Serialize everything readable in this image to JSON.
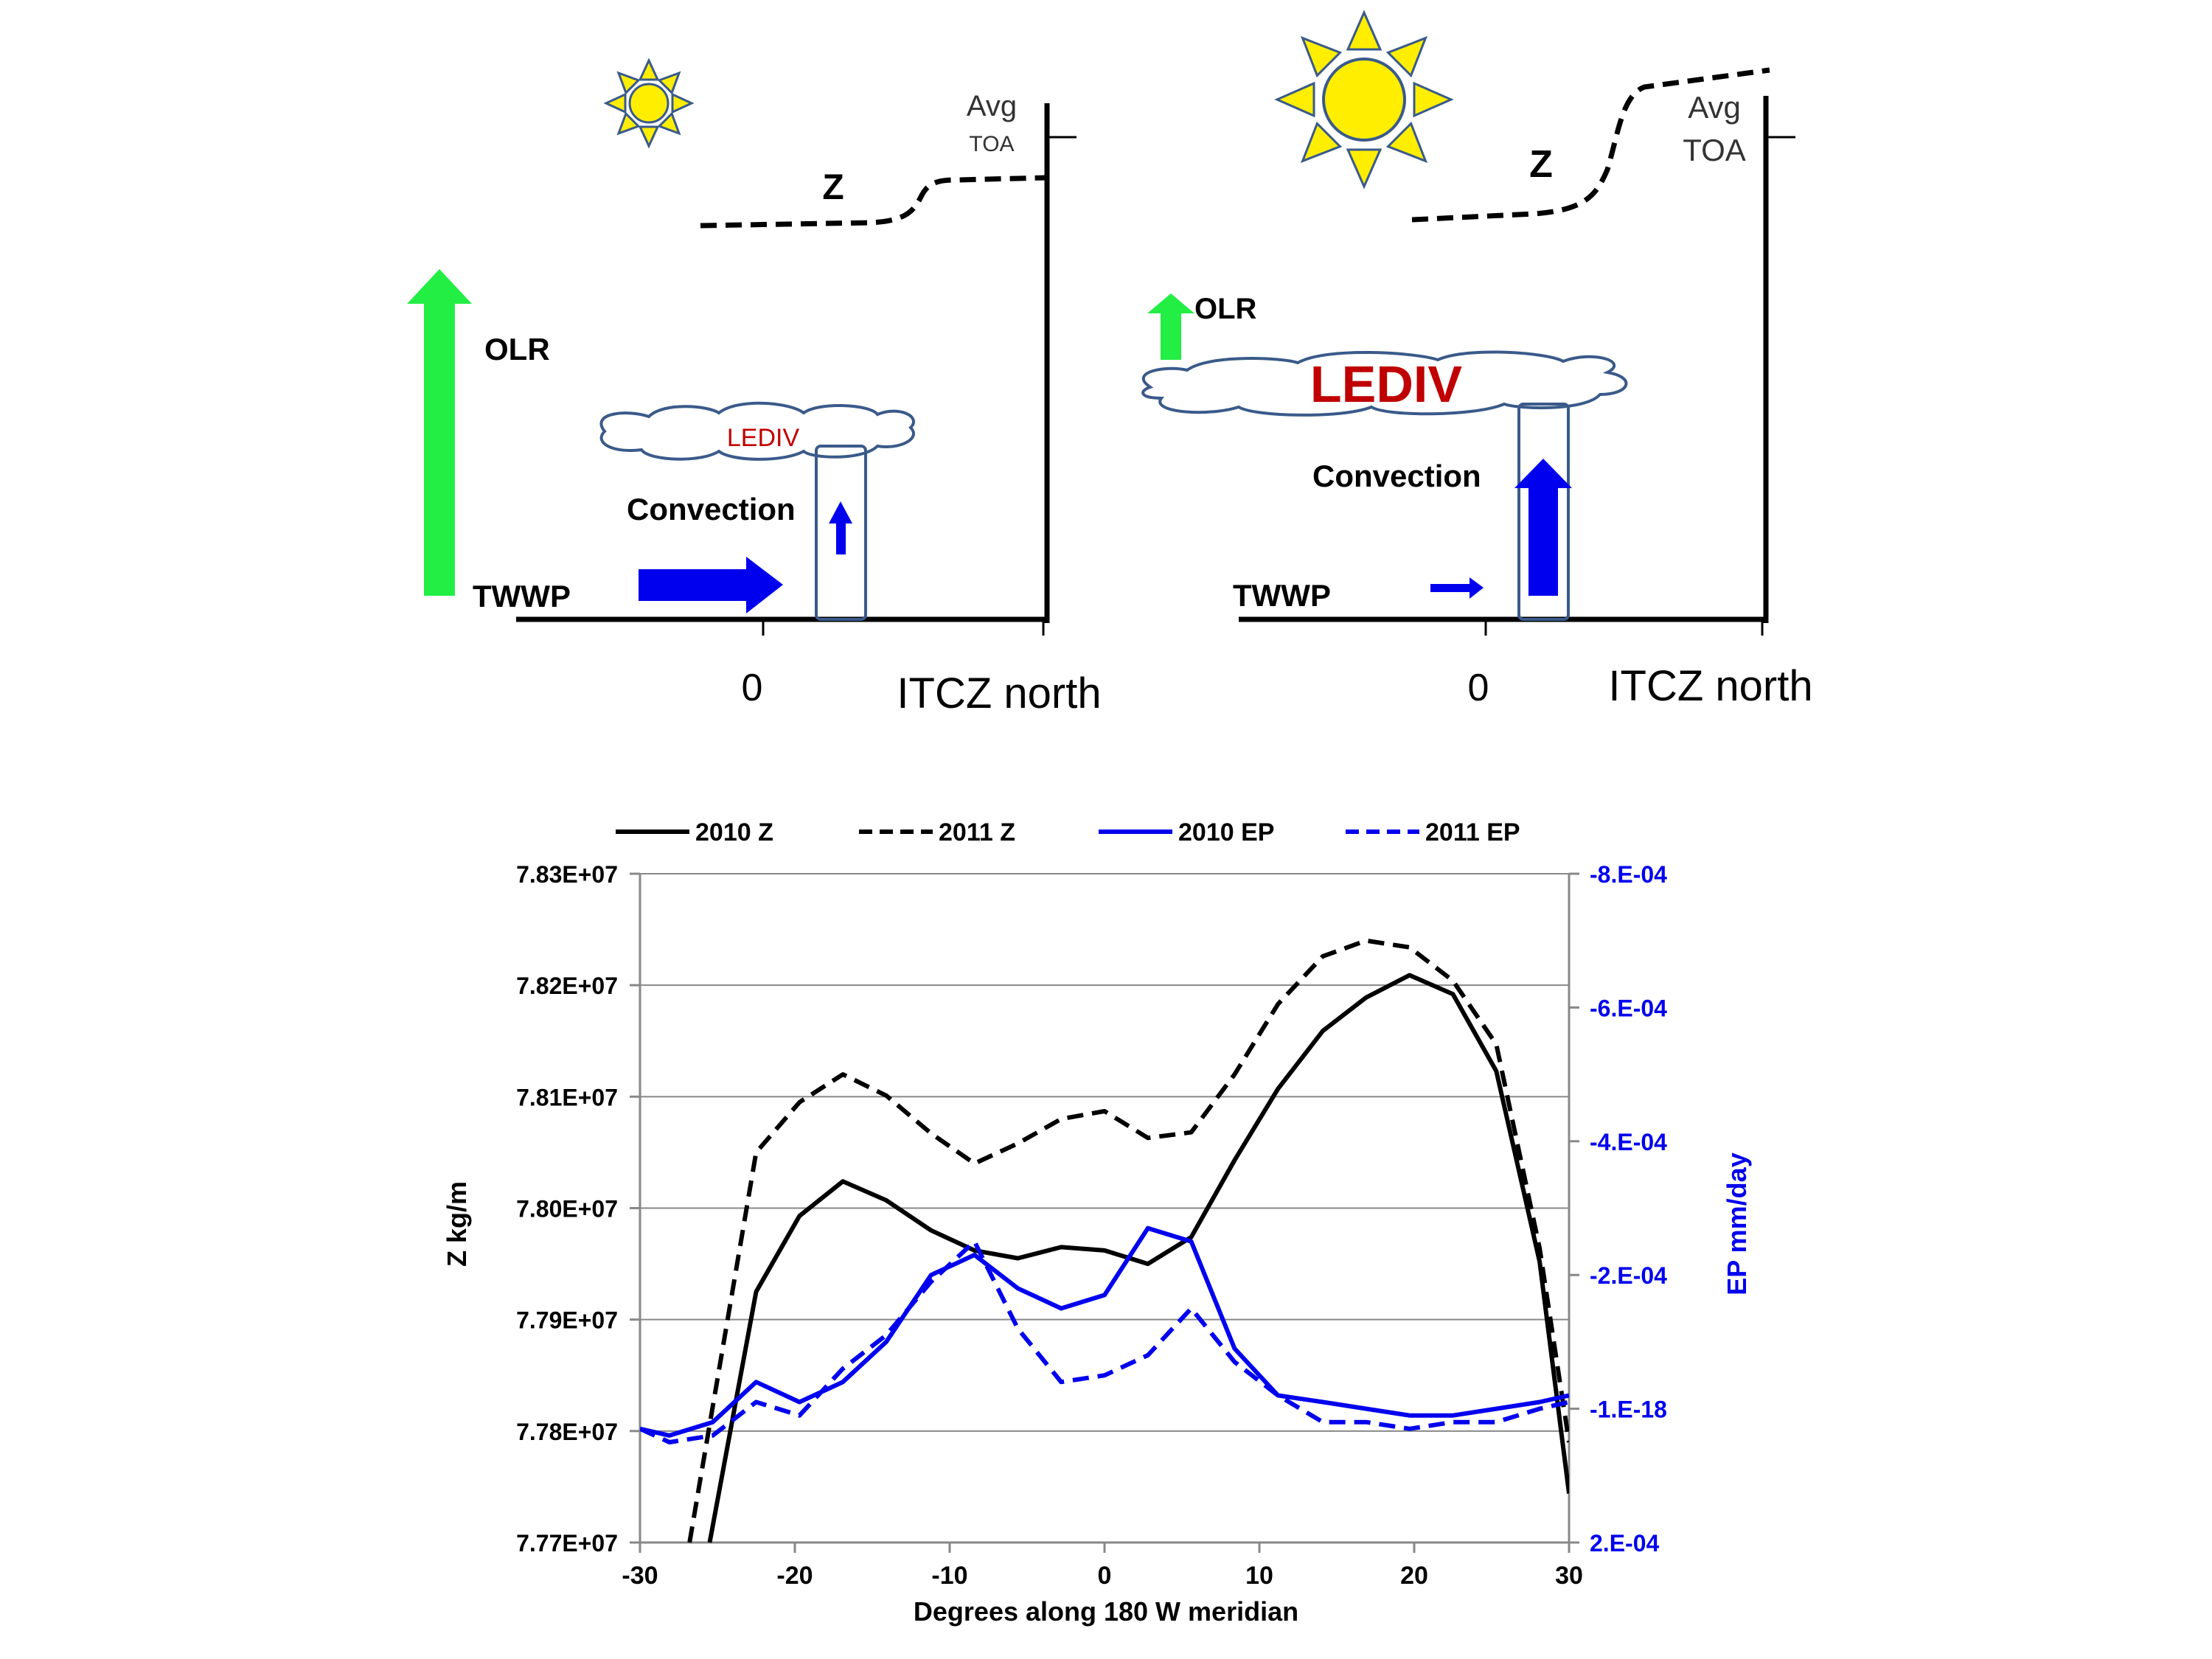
{
  "schematic": {
    "left": {
      "z_label": "Z",
      "toa_label_line1": "Avg",
      "toa_label_line2": "TOA",
      "olr_label": "OLR",
      "cloud_label": "LEDIV",
      "convection_label": "Convection",
      "twwp_label": "TWWP",
      "zero_label": "0",
      "itcz_label": "ITCZ north"
    },
    "right": {
      "z_label": "Z",
      "toa_label_line1": "Avg",
      "toa_label_line2": "TOA",
      "olr_label": "OLR",
      "cloud_label": "LEDIV",
      "convection_label": "Convection",
      "twwp_label": "TWWP",
      "zero_label": "0",
      "itcz_label": "ITCZ north"
    },
    "colors": {
      "olr_arrow": "#22ee44",
      "flow_arrow": "#0000ee",
      "cloud_outline": "#3a5a8a",
      "ledev_text": "#c00000",
      "sun_fill": "#ffee00",
      "sun_ray": "#ffee00",
      "sun_outline": "#3a5a8a"
    }
  },
  "chart_data": {
    "type": "line",
    "xlabel": "Degrees along 180 W meridian",
    "ylabel_left": "Z kg/m",
    "ylabel_right": "EP mm/day",
    "xlim": [
      -30,
      30
    ],
    "ylim_left": [
      77700000,
      78300000
    ],
    "ylim_right": [
      0.0002,
      -0.0008
    ],
    "x_ticks": [
      "-30",
      "-20",
      "-10",
      "0",
      "10",
      "20",
      "30"
    ],
    "x_tick_values": [
      -30,
      -20,
      -10,
      0,
      10,
      20,
      30
    ],
    "y_left_ticks": [
      "7.77E+07",
      "7.78E+07",
      "7.79E+07",
      "7.80E+07",
      "7.81E+07",
      "7.82E+07",
      "7.83E+07"
    ],
    "y_left_tick_values": [
      77700000,
      77800000,
      77900000,
      78000000,
      78100000,
      78200000,
      78300000
    ],
    "y_right_ticks": [
      "2.E-04",
      "-1.E-18",
      "-2.E-04",
      "-4.E-04",
      "-6.E-04",
      "-8.E-04"
    ],
    "y_right_tick_values": [
      0.0002,
      0.0,
      -0.0002,
      -0.0004,
      -0.0006,
      -0.0008
    ],
    "grid": "horizontal",
    "legend_position": "top",
    "colors": {
      "z": "#000000",
      "ep": "#0000ee",
      "axis": "#888888",
      "right_axis_text": "#0000ee"
    },
    "series": [
      {
        "name": "2010 Z",
        "axis": "left",
        "dash": false,
        "x": [
          -25.5,
          -22.5,
          -19.7,
          -16.9,
          -14.1,
          -11.2,
          -8.4,
          -5.6,
          -2.8,
          0,
          2.8,
          5.6,
          8.4,
          11.2,
          14.1,
          16.9,
          19.7,
          22.5,
          25.3,
          28.1,
          30
        ],
        "y": [
          77700000,
          77925000,
          77993000,
          78024000,
          78007000,
          77980000,
          77962000,
          77955000,
          77965000,
          77962000,
          77950000,
          77974000,
          78043000,
          78107000,
          78159000,
          78189000,
          78209000,
          78192000,
          78123000,
          77952000,
          77744000
        ]
      },
      {
        "name": "2011 Z",
        "axis": "left",
        "dash": true,
        "x": [
          -26.8,
          -22.5,
          -19.7,
          -16.9,
          -14.1,
          -11.2,
          -8.4,
          -5.6,
          -2.8,
          0,
          2.8,
          5.6,
          8.4,
          11.2,
          14.1,
          16.9,
          19.7,
          22.5,
          25.3,
          28.1,
          30
        ],
        "y": [
          77700000,
          78050000,
          78095000,
          78120000,
          78101000,
          78067000,
          78040000,
          78058000,
          78080000,
          78087000,
          78063000,
          78068000,
          78120000,
          78183000,
          78226000,
          78240000,
          78234000,
          78204000,
          78147000,
          77964000,
          77790000
        ]
      },
      {
        "name": "2010 EP",
        "axis": "right",
        "dash": false,
        "x": [
          -30,
          -28.1,
          -25.3,
          -22.5,
          -19.7,
          -16.9,
          -14.1,
          -11.2,
          -8.4,
          -5.6,
          -2.8,
          0,
          2.8,
          5.6,
          8.4,
          11.2,
          14.1,
          16.9,
          19.7,
          22.5,
          25.3,
          28.1,
          30
        ],
        "y": [
          3e-05,
          4e-05,
          2e-05,
          -4e-05,
          -1e-05,
          -4e-05,
          -0.0001,
          -0.0002,
          -0.00023,
          -0.00018,
          -0.00015,
          -0.00017,
          -0.00027,
          -0.00025,
          -9e-05,
          -2e-05,
          -1e-05,
          0.0,
          1e-05,
          1e-05,
          0.0,
          -1e-05,
          -2e-05
        ]
      },
      {
        "name": "2011 EP",
        "axis": "right",
        "dash": true,
        "x": [
          -30,
          -28.1,
          -25.3,
          -22.5,
          -19.7,
          -16.9,
          -14.1,
          -11.2,
          -8.4,
          -5.6,
          -2.8,
          0,
          2.8,
          5.6,
          8.4,
          11.2,
          14.1,
          16.9,
          19.7,
          22.5,
          25.3,
          28.1,
          30
        ],
        "y": [
          3e-05,
          5e-05,
          4e-05,
          -1e-05,
          1e-05,
          -6e-05,
          -0.00011,
          -0.00019,
          -0.00025,
          -0.00012,
          -4e-05,
          -5e-05,
          -8e-05,
          -0.00015,
          -7e-05,
          -2e-05,
          2e-05,
          2e-05,
          3e-05,
          2e-05,
          2e-05,
          0.0,
          -1e-05
        ]
      }
    ]
  }
}
